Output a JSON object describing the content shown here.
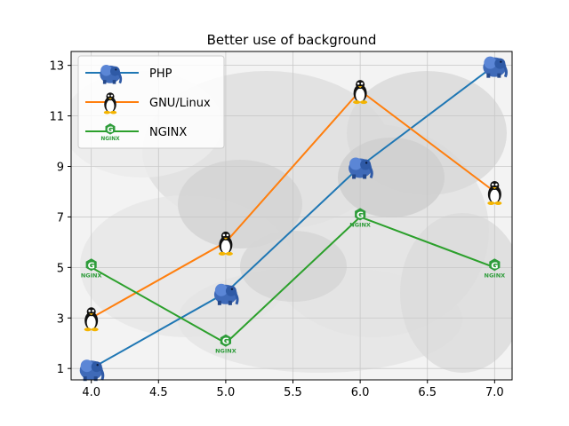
{
  "chart_data": {
    "type": "line",
    "title": "Better use of background",
    "xlabel": "",
    "ylabel": "",
    "xlim": [
      3.85,
      7.13
    ],
    "ylim": [
      0.55,
      13.55
    ],
    "xticks": [
      "4.0",
      "4.5",
      "5.0",
      "5.5",
      "6.0",
      "6.5",
      "7.0"
    ],
    "yticks": [
      "1",
      "3",
      "5",
      "7",
      "9",
      "11",
      "13"
    ],
    "grid": true,
    "legend_position": "upper-left",
    "x": [
      4,
      5,
      6,
      7
    ],
    "series": [
      {
        "name": "PHP",
        "values": [
          1,
          4,
          9,
          13
        ],
        "color": "#1f77b4",
        "marker_icon": "php-elephant-icon"
      },
      {
        "name": "GNU/Linux",
        "values": [
          3,
          6,
          12,
          8
        ],
        "color": "#ff7f0e",
        "marker_icon": "tux-penguin-icon"
      },
      {
        "name": "NGINX",
        "values": [
          5,
          2,
          7,
          5
        ],
        "color": "#2ca02c",
        "marker_icon": "nginx-logo-icon"
      }
    ],
    "background_image": "grayscale-photo-icon",
    "nginx_logo_text": "NGINX"
  }
}
